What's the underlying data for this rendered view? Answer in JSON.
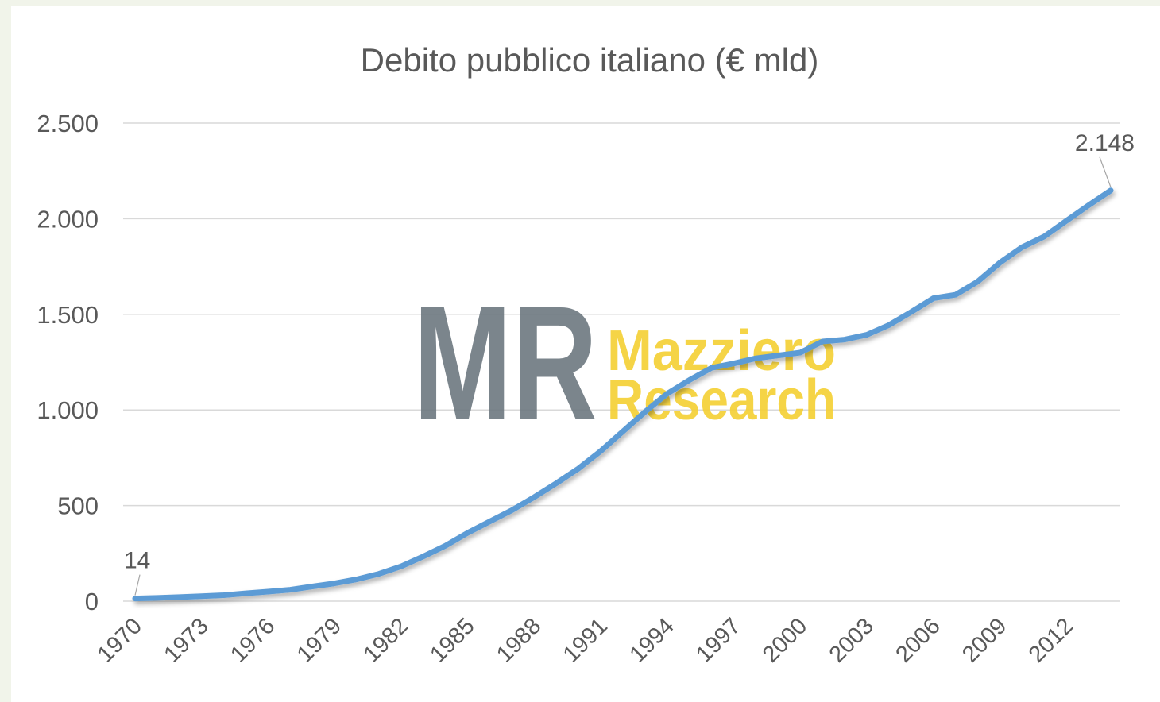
{
  "chart_data": {
    "type": "line",
    "title": "Debito pubblico italiano (€ mld)",
    "categories": [
      "1970",
      null,
      null,
      "1973",
      null,
      null,
      "1976",
      null,
      null,
      "1979",
      null,
      null,
      "1982",
      null,
      null,
      "1985",
      null,
      null,
      "1988",
      null,
      null,
      "1991",
      null,
      null,
      "1994",
      null,
      null,
      "1997",
      null,
      null,
      "2000",
      null,
      null,
      "2003",
      null,
      null,
      "2006",
      null,
      null,
      "2009",
      null,
      null,
      "2012",
      null,
      null
    ],
    "series": [
      {
        "color": "#5b9bd5",
        "values": [
          14,
          17,
          21,
          26,
          31,
          41,
          50,
          60,
          77,
          93,
          114,
          143,
          182,
          234,
          290,
          357,
          417,
          476,
          544,
          617,
          694,
          785,
          888,
          990,
          1085,
          1156,
          1220,
          1243,
          1270,
          1285,
          1300,
          1358,
          1368,
          1393,
          1444,
          1512,
          1584,
          1602,
          1671,
          1770,
          1851,
          1907,
          1989,
          2070,
          2148
        ],
        "value_labels": [
          "14",
          null,
          null,
          null,
          null,
          null,
          null,
          null,
          null,
          null,
          null,
          null,
          null,
          null,
          null,
          null,
          null,
          null,
          null,
          null,
          null,
          null,
          null,
          null,
          null,
          null,
          null,
          null,
          null,
          null,
          null,
          null,
          null,
          null,
          null,
          null,
          null,
          null,
          null,
          null,
          null,
          null,
          null,
          null,
          "2.148"
        ]
      }
    ],
    "ylim": [
      0,
      2500
    ],
    "yticks": [
      0,
      500,
      {
        "value": 1000,
        "label": "1.000"
      },
      {
        "value": 1500,
        "label": "1.500"
      },
      {
        "value": 2000,
        "label": "2.000"
      },
      {
        "value": 2500,
        "label": "2.500"
      }
    ],
    "grid": true,
    "watermark": {
      "logo": "MR",
      "line1": "Mazziero",
      "line2": "Research"
    }
  }
}
